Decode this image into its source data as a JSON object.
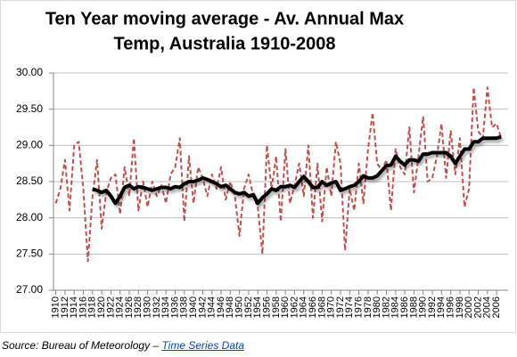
{
  "chart_data": {
    "type": "line",
    "title": [
      "Ten Year moving average - Av. Annual Max",
      "Temp, Australia 1910-2008"
    ],
    "x": [
      1910,
      1911,
      1912,
      1913,
      1914,
      1915,
      1916,
      1917,
      1918,
      1919,
      1920,
      1921,
      1922,
      1923,
      1924,
      1925,
      1926,
      1927,
      1928,
      1929,
      1930,
      1931,
      1932,
      1933,
      1934,
      1935,
      1936,
      1937,
      1938,
      1939,
      1940,
      1941,
      1942,
      1943,
      1944,
      1945,
      1946,
      1947,
      1948,
      1949,
      1950,
      1951,
      1952,
      1953,
      1954,
      1955,
      1956,
      1957,
      1958,
      1959,
      1960,
      1961,
      1962,
      1963,
      1964,
      1965,
      1966,
      1967,
      1968,
      1969,
      1970,
      1971,
      1972,
      1973,
      1974,
      1975,
      1976,
      1977,
      1978,
      1979,
      1980,
      1981,
      1982,
      1983,
      1984,
      1985,
      1986,
      1987,
      1988,
      1989,
      1990,
      1991,
      1992,
      1993,
      1994,
      1995,
      1996,
      1997,
      1998,
      1999,
      2000,
      2001,
      2002,
      2003,
      2004,
      2005,
      2006,
      2007,
      2008
    ],
    "series": [
      {
        "color": "#c0504d",
        "dashed": true,
        "width": 2,
        "values": [
          28.2,
          28.4,
          28.8,
          28.1,
          29.0,
          29.05,
          28.4,
          27.4,
          28.3,
          28.8,
          27.85,
          28.35,
          28.55,
          28.6,
          28.05,
          28.7,
          28.3,
          29.1,
          28.1,
          28.5,
          28.15,
          28.5,
          28.3,
          28.45,
          28.2,
          28.6,
          28.7,
          29.1,
          27.95,
          28.85,
          28.2,
          28.7,
          28.55,
          28.3,
          28.6,
          28.4,
          28.7,
          28.25,
          28.5,
          28.3,
          27.75,
          28.4,
          28.6,
          28.3,
          28.15,
          27.5,
          29.0,
          28.4,
          28.85,
          27.95,
          28.95,
          28.2,
          28.45,
          28.75,
          28.3,
          29.0,
          28.0,
          28.75,
          27.95,
          28.7,
          28.3,
          29.05,
          28.75,
          27.55,
          28.4,
          28.1,
          28.75,
          28.2,
          28.95,
          29.45,
          28.75,
          28.65,
          28.8,
          28.1,
          28.95,
          28.7,
          28.6,
          29.25,
          28.35,
          28.85,
          29.4,
          28.5,
          28.55,
          28.85,
          29.3,
          28.55,
          29.2,
          28.6,
          29.1,
          28.15,
          28.4,
          29.8,
          29.2,
          29.1,
          29.8,
          29.25,
          29.3,
          29.1,
          null
        ]
      },
      {
        "color": "#000000",
        "dashed": false,
        "width": 4,
        "values": [
          null,
          null,
          null,
          null,
          null,
          null,
          null,
          null,
          28.4,
          28.38,
          28.35,
          28.38,
          28.3,
          28.2,
          28.3,
          28.42,
          28.45,
          28.4,
          28.43,
          28.42,
          28.4,
          28.38,
          28.4,
          28.42,
          28.42,
          28.4,
          28.43,
          28.42,
          28.47,
          28.5,
          28.5,
          28.52,
          28.55,
          28.53,
          28.5,
          28.47,
          28.43,
          28.45,
          28.4,
          28.35,
          28.33,
          28.35,
          28.3,
          28.32,
          28.2,
          28.28,
          28.33,
          28.4,
          28.38,
          28.43,
          28.43,
          28.45,
          28.42,
          28.5,
          28.57,
          28.5,
          28.42,
          28.42,
          28.5,
          28.45,
          28.48,
          28.5,
          28.38,
          28.4,
          28.43,
          28.45,
          28.5,
          28.58,
          28.55,
          28.55,
          28.58,
          28.65,
          28.72,
          28.73,
          28.85,
          28.78,
          28.73,
          28.8,
          28.8,
          28.78,
          28.88,
          28.88,
          28.9,
          28.9,
          28.9,
          28.9,
          28.85,
          28.75,
          28.85,
          28.95,
          28.95,
          29.05,
          29.05,
          29.1,
          29.1,
          29.1,
          29.1,
          29.12,
          null
        ]
      }
    ],
    "xlim": [
      1909.5,
      2008.5
    ],
    "xticks": [
      1910,
      1912,
      1914,
      1916,
      1918,
      1920,
      1922,
      1924,
      1926,
      1928,
      1930,
      1932,
      1934,
      1936,
      1938,
      1940,
      1942,
      1944,
      1946,
      1948,
      1950,
      1952,
      1954,
      1956,
      1958,
      1960,
      1962,
      1964,
      1966,
      1968,
      1970,
      1972,
      1974,
      1976,
      1978,
      1980,
      1982,
      1984,
      1986,
      1988,
      1990,
      1992,
      1994,
      1996,
      1998,
      2000,
      2002,
      2004,
      2006
    ],
    "ylim": [
      27,
      30
    ],
    "yticks": [
      {
        "value": 27,
        "label": "27.00"
      },
      {
        "value": 27.5,
        "label": "27.50"
      },
      {
        "value": 28,
        "label": "28.00"
      },
      {
        "value": 28.5,
        "label": "28.50"
      },
      {
        "value": 29,
        "label": "29.00"
      },
      {
        "value": 29.5,
        "label": "29.50"
      },
      {
        "value": 30,
        "label": "30.00"
      }
    ],
    "grid": true
  },
  "source": {
    "text": "Source: Bureau of Meteorology – ",
    "link": "Time Series Data"
  }
}
